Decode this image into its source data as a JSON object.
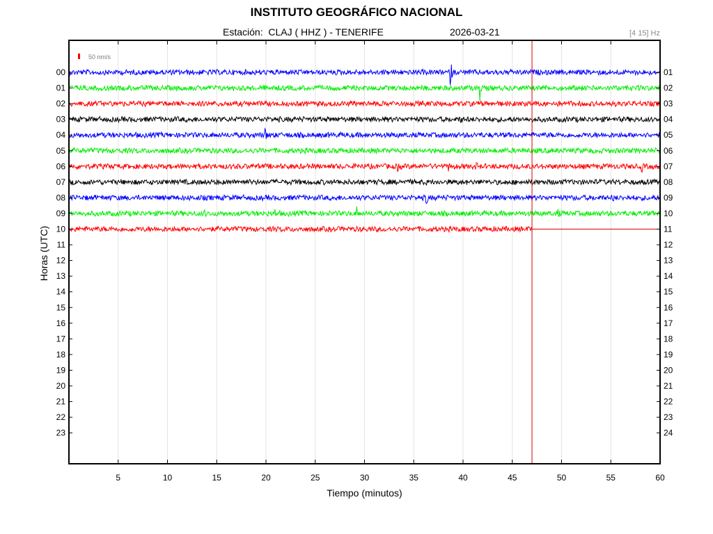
{
  "header": {
    "title": "INSTITUTO GEOGRÁFICO NACIONAL",
    "station": "Estación:  CLAJ ( HHZ ) - TENERIFE",
    "date": "2026-03-21",
    "filter": "[4 15] Hz"
  },
  "chart_data": {
    "type": "line",
    "title": "INSTITUTO GEOGRÁFICO NACIONAL",
    "xlabel": "Tiempo (minutos)",
    "ylabel": "Horas (UTC)",
    "xlim": [
      0,
      60
    ],
    "x_ticks": [
      5,
      10,
      15,
      20,
      25,
      30,
      35,
      40,
      45,
      50,
      55,
      60
    ],
    "left_tick_labels": [
      "00",
      "01",
      "02",
      "03",
      "04",
      "05",
      "06",
      "07",
      "08",
      "09",
      "10",
      "11",
      "12",
      "13",
      "14",
      "15",
      "16",
      "17",
      "18",
      "19",
      "20",
      "21",
      "22",
      "23"
    ],
    "right_tick_labels": [
      "01",
      "02",
      "03",
      "04",
      "05",
      "06",
      "07",
      "08",
      "09",
      "10",
      "11",
      "12",
      "13",
      "14",
      "15",
      "16",
      "17",
      "18",
      "19",
      "20",
      "21",
      "22",
      "23",
      "24"
    ],
    "scale_bar": "50 nm/s",
    "current_time_minute": 47,
    "grid": "vertical",
    "colors": [
      "#0000ff",
      "#00ee00",
      "#ff0000",
      "#000000"
    ],
    "series": [
      {
        "hour": 0,
        "color": "#0000ff",
        "end_minute": 60,
        "events": [
          {
            "minute": 38.7,
            "amplitude": 28
          }
        ]
      },
      {
        "hour": 1,
        "color": "#00ee00",
        "end_minute": 60,
        "events": [
          {
            "minute": 41.7,
            "amplitude": 16
          }
        ]
      },
      {
        "hour": 2,
        "color": "#ff0000",
        "end_minute": 60,
        "events": []
      },
      {
        "hour": 3,
        "color": "#000000",
        "end_minute": 60,
        "events": [
          {
            "minute": 39.7,
            "amplitude": 9
          }
        ]
      },
      {
        "hour": 4,
        "color": "#0000ff",
        "end_minute": 60,
        "events": [
          {
            "minute": 19.9,
            "amplitude": 13
          }
        ]
      },
      {
        "hour": 5,
        "color": "#00ee00",
        "end_minute": 60,
        "events": []
      },
      {
        "hour": 6,
        "color": "#ff0000",
        "end_minute": 60,
        "events": [
          {
            "minute": 33.3,
            "amplitude": 14
          },
          {
            "minute": 38.5,
            "amplitude": 6
          },
          {
            "minute": 41.3,
            "amplitude": 5
          },
          {
            "minute": 58.1,
            "amplitude": 8
          }
        ]
      },
      {
        "hour": 7,
        "color": "#000000",
        "end_minute": 60,
        "events": []
      },
      {
        "hour": 8,
        "color": "#0000ff",
        "end_minute": 60,
        "events": [
          {
            "minute": 36.2,
            "amplitude": 20
          },
          {
            "minute": 55.2,
            "amplitude": 6
          }
        ]
      },
      {
        "hour": 9,
        "color": "#00ee00",
        "end_minute": 60,
        "events": [
          {
            "minute": 13.7,
            "amplitude": 6
          },
          {
            "minute": 20.9,
            "amplitude": 6
          },
          {
            "minute": 29.2,
            "amplitude": 8
          },
          {
            "minute": 49.6,
            "amplitude": 8
          }
        ]
      },
      {
        "hour": 10,
        "color": "#ff0000",
        "end_minute": 47,
        "events": []
      }
    ]
  }
}
